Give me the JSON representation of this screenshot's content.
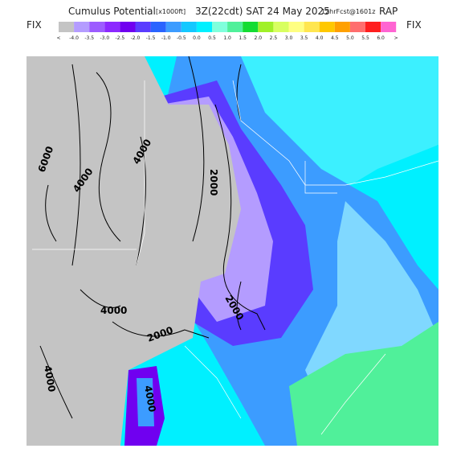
{
  "header": {
    "title": "Cumulus Potential",
    "units": "[x1000ft]",
    "valid": "3Z(22cdt) SAT 24 May 2025",
    "forecast": "12hrFcst@1601z",
    "model": "RAP",
    "fix_left": "FIX",
    "fix_right": "FIX"
  },
  "legend": {
    "labels": [
      "<",
      "-4.0",
      "-3.5",
      "-3.0",
      "-2.5",
      "-2.0",
      "-1.5",
      "-1.0",
      "-0.5",
      "0.0",
      "0.5",
      "1.0",
      "1.5",
      "2.0",
      "2.5",
      "3.0",
      "3.5",
      "4.0",
      "4.5",
      "5.0",
      "5.5",
      "6.0",
      ">"
    ],
    "colors": [
      "#c4c4c4",
      "#b49cff",
      "#9c5cff",
      "#8c28ff",
      "#7000f0",
      "#5a3cff",
      "#2a64ff",
      "#3c9cff",
      "#14c8ff",
      "#00f0ff",
      "#80ffdc",
      "#50f09a",
      "#14dc32",
      "#a0f028",
      "#d8ff60",
      "#ffff82",
      "#ffe650",
      "#ffc800",
      "#ffa000",
      "#ff6e6e",
      "#ff1e1e",
      "#ff64d2"
    ]
  },
  "contours": [
    "6000",
    "4000",
    "4000",
    "4000",
    "2000",
    "2000",
    "2000",
    "4000",
    "4000"
  ]
}
